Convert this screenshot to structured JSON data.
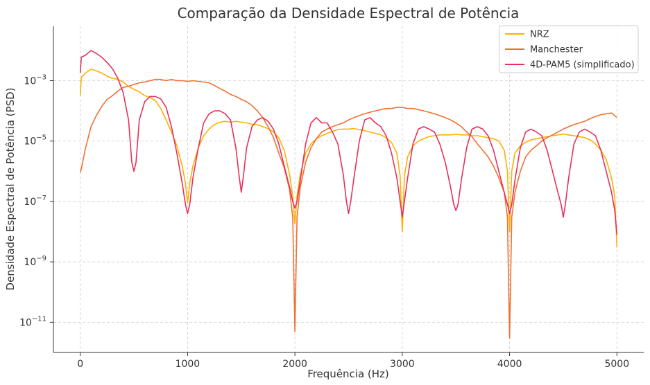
{
  "chart_data": {
    "type": "line",
    "title": "Comparação da Densidade Espectral de Potência",
    "xlabel": "Frequência (Hz)",
    "ylabel": "Densidade Espectral de Potência (PSD)",
    "xlim": [
      -250,
      5250
    ],
    "ylim_log10": [
      -12,
      -1.2
    ],
    "y_scale": "log",
    "grid": true,
    "legend_position": "top-right",
    "x_ticks": [
      {
        "value": 0,
        "label": "0"
      },
      {
        "value": 1000,
        "label": "1000"
      },
      {
        "value": 2000,
        "label": "2000"
      },
      {
        "value": 3000,
        "label": "3000"
      },
      {
        "value": 4000,
        "label": "4000"
      },
      {
        "value": 5000,
        "label": "5000"
      }
    ],
    "y_ticks": [
      {
        "exp": -3,
        "base": "10",
        "sup": "−3"
      },
      {
        "exp": -5,
        "base": "10",
        "sup": "−5"
      },
      {
        "exp": -7,
        "base": "10",
        "sup": "−7"
      },
      {
        "exp": -9,
        "base": "10",
        "sup": "−9"
      },
      {
        "exp": -11,
        "base": "10",
        "sup": "−11"
      }
    ],
    "series": [
      {
        "name": "NRZ",
        "color": "#FFB000",
        "x": [
          0,
          10,
          50,
          100,
          150,
          200,
          250,
          300,
          350,
          400,
          450,
          500,
          550,
          600,
          650,
          700,
          750,
          800,
          850,
          900,
          950,
          980,
          1000,
          1020,
          1050,
          1100,
          1150,
          1200,
          1250,
          1300,
          1350,
          1400,
          1450,
          1500,
          1550,
          1600,
          1650,
          1700,
          1750,
          1800,
          1850,
          1900,
          1950,
          1980,
          2000,
          2020,
          2050,
          2100,
          2150,
          2200,
          2250,
          2300,
          2350,
          2400,
          2450,
          2500,
          2550,
          2600,
          2650,
          2700,
          2750,
          2800,
          2850,
          2900,
          2950,
          2980,
          3000,
          3020,
          3050,
          3100,
          3150,
          3200,
          3250,
          3300,
          3350,
          3400,
          3450,
          3500,
          3550,
          3600,
          3650,
          3700,
          3750,
          3800,
          3850,
          3900,
          3950,
          3980,
          4000,
          4020,
          4050,
          4100,
          4150,
          4200,
          4250,
          4300,
          4350,
          4400,
          4450,
          4500,
          4550,
          4600,
          4650,
          4700,
          4750,
          4800,
          4850,
          4900,
          4950,
          4980,
          5000
        ],
        "y": [
          0.00032,
          0.0013,
          0.0018,
          0.0024,
          0.0021,
          0.0018,
          0.0014,
          0.0012,
          0.0011,
          0.0009,
          0.00065,
          0.00052,
          0.00043,
          0.00032,
          0.00028,
          0.00022,
          0.00012,
          5e-05,
          2e-05,
          7e-06,
          1.5e-06,
          4e-07,
          9e-08,
          4e-07,
          1.5e-06,
          6e-06,
          1.5e-05,
          2.5e-05,
          3.5e-05,
          4.2e-05,
          4.5e-05,
          4.2e-05,
          4.5e-05,
          4.2e-05,
          4e-05,
          3.6e-05,
          3.5e-05,
          3e-05,
          2.6e-05,
          2e-05,
          1.3e-05,
          5e-06,
          8e-07,
          1.5e-07,
          1.8e-08,
          1.5e-07,
          8e-07,
          4e-06,
          8e-06,
          1.2e-05,
          1.5e-05,
          1.8e-05,
          2.1e-05,
          2.4e-05,
          2.5e-05,
          2.5e-05,
          2.6e-05,
          2.4e-05,
          2.2e-05,
          2e-05,
          1.8e-05,
          1.6e-05,
          1.3e-05,
          9e-06,
          4e-06,
          7e-07,
          1e-08,
          7e-07,
          3e-06,
          7e-06,
          1e-05,
          1.2e-05,
          1.4e-05,
          1.5e-05,
          1.6e-05,
          1.6e-05,
          1.6e-05,
          1.7e-05,
          1.6e-05,
          1.6e-05,
          1.5e-05,
          1.5e-05,
          1.4e-05,
          1.3e-05,
          1.2e-05,
          1e-05,
          5e-06,
          1e-06,
          1e-08,
          1e-06,
          4e-06,
          7e-06,
          9e-06,
          1.1e-05,
          1.2e-05,
          1.3e-05,
          1.4e-05,
          1.5e-05,
          1.6e-05,
          1.7e-05,
          1.6e-05,
          1.5e-05,
          1.4e-05,
          1.3e-05,
          1.1e-05,
          8e-06,
          5e-06,
          2.5e-06,
          6e-07,
          1.5e-07,
          3e-09
        ]
      },
      {
        "name": "Manchester",
        "color": "#F07030",
        "x": [
          0,
          10,
          50,
          100,
          150,
          200,
          250,
          300,
          350,
          400,
          450,
          500,
          550,
          600,
          650,
          700,
          750,
          800,
          850,
          900,
          950,
          1000,
          1050,
          1100,
          1150,
          1200,
          1250,
          1300,
          1350,
          1400,
          1450,
          1500,
          1550,
          1600,
          1650,
          1700,
          1750,
          1800,
          1850,
          1900,
          1950,
          1980,
          2000,
          2020,
          2050,
          2100,
          2150,
          2200,
          2250,
          2300,
          2350,
          2400,
          2450,
          2500,
          2550,
          2600,
          2650,
          2700,
          2750,
          2800,
          2850,
          2900,
          2950,
          3000,
          3050,
          3100,
          3150,
          3200,
          3250,
          3300,
          3350,
          3400,
          3450,
          3500,
          3550,
          3600,
          3650,
          3700,
          3750,
          3800,
          3850,
          3900,
          3950,
          3980,
          4000,
          4020,
          4050,
          4100,
          4150,
          4200,
          4250,
          4300,
          4350,
          4400,
          4450,
          4500,
          4550,
          4600,
          4650,
          4700,
          4750,
          4800,
          4850,
          4900,
          4950,
          5000
        ],
        "y": [
          9e-07,
          1.2e-06,
          6e-06,
          3e-05,
          7e-05,
          0.00014,
          0.00024,
          0.00032,
          0.00045,
          0.0006,
          0.00065,
          0.00075,
          0.00085,
          0.0009,
          0.001,
          0.0011,
          0.0011,
          0.001,
          0.0011,
          0.001,
          0.001,
          0.00095,
          0.001,
          0.00095,
          0.0009,
          0.00085,
          0.0007,
          0.00055,
          0.00045,
          0.00035,
          0.0003,
          0.00024,
          0.0002,
          0.00015,
          0.0001,
          6e-05,
          3e-05,
          1.3e-05,
          4e-06,
          1.3e-06,
          2.5e-07,
          3e-08,
          5e-12,
          3e-08,
          3e-07,
          2e-06,
          6e-06,
          1.2e-05,
          2e-05,
          2.5e-05,
          3e-05,
          3.5e-05,
          4e-05,
          5e-05,
          6e-05,
          7e-05,
          8e-05,
          9e-05,
          0.0001,
          0.00011,
          0.00012,
          0.00012,
          0.00013,
          0.00013,
          0.00012,
          0.00012,
          0.00011,
          0.0001,
          9e-05,
          8e-05,
          7e-05,
          6e-05,
          5e-05,
          4e-05,
          3e-05,
          2e-05,
          1.4e-05,
          8e-06,
          5e-06,
          3e-06,
          1.5e-06,
          6e-07,
          2e-07,
          3e-08,
          3e-12,
          3e-08,
          2e-07,
          1e-06,
          3e-06,
          5e-06,
          7e-06,
          1e-05,
          1.3e-05,
          1.6e-05,
          2e-05,
          2.5e-05,
          3e-05,
          3.5e-05,
          4e-05,
          4.5e-05,
          5.5e-05,
          6.5e-05,
          7.5e-05,
          8e-05,
          8.5e-05,
          6e-05
        ]
      },
      {
        "name": "4D-PAM5 (simplificado)",
        "color": "#E8305A",
        "x": [
          0,
          10,
          50,
          100,
          150,
          200,
          250,
          300,
          350,
          400,
          450,
          480,
          500,
          520,
          550,
          600,
          650,
          700,
          750,
          800,
          850,
          900,
          950,
          980,
          1000,
          1020,
          1050,
          1100,
          1150,
          1200,
          1250,
          1300,
          1350,
          1400,
          1450,
          1480,
          1500,
          1520,
          1550,
          1600,
          1650,
          1700,
          1750,
          1800,
          1850,
          1900,
          1950,
          1980,
          2000,
          2020,
          2050,
          2100,
          2150,
          2200,
          2250,
          2300,
          2350,
          2400,
          2450,
          2480,
          2500,
          2520,
          2550,
          2600,
          2650,
          2700,
          2750,
          2800,
          2850,
          2900,
          2950,
          2980,
          3000,
          3020,
          3050,
          3100,
          3150,
          3200,
          3250,
          3300,
          3350,
          3400,
          3450,
          3480,
          3500,
          3520,
          3550,
          3600,
          3650,
          3700,
          3750,
          3800,
          3850,
          3900,
          3950,
          3980,
          4000,
          4020,
          4050,
          4100,
          4150,
          4200,
          4250,
          4300,
          4350,
          4400,
          4450,
          4480,
          4500,
          4520,
          4550,
          4600,
          4650,
          4700,
          4750,
          4800,
          4850,
          4900,
          4950,
          4980,
          5000
        ],
        "y": [
          0.0018,
          0.006,
          0.007,
          0.01,
          0.008,
          0.006,
          0.004,
          0.0025,
          0.0012,
          0.0004,
          5e-05,
          2e-06,
          1e-06,
          2e-06,
          5e-05,
          0.0002,
          0.0003,
          0.0003,
          0.00025,
          0.00013,
          3e-05,
          4e-06,
          4e-07,
          8e-08,
          4e-08,
          8e-08,
          6e-07,
          6e-06,
          4e-05,
          8e-05,
          0.0001,
          0.0001,
          8e-05,
          5e-05,
          6e-06,
          7e-07,
          2e-07,
          7e-07,
          6e-06,
          3e-05,
          5e-05,
          6e-05,
          4.5e-05,
          2.5e-05,
          8e-06,
          1.5e-06,
          3e-07,
          1e-07,
          6e-08,
          1e-07,
          5e-07,
          8e-06,
          4e-05,
          6e-05,
          4e-05,
          4e-05,
          2e-05,
          8e-06,
          8e-07,
          1e-07,
          4e-08,
          1e-07,
          6e-07,
          1e-05,
          5e-05,
          6e-05,
          4e-05,
          3e-05,
          1.5e-05,
          4e-06,
          6e-07,
          1e-07,
          3e-08,
          1e-07,
          6e-07,
          8e-06,
          2.5e-05,
          3e-05,
          2.5e-05,
          2e-05,
          8e-06,
          2e-06,
          3e-07,
          8e-08,
          5e-08,
          8e-08,
          5e-07,
          6e-06,
          2.5e-05,
          3e-05,
          2.5e-05,
          1.5e-05,
          5e-06,
          1e-06,
          2e-07,
          8e-08,
          4e-08,
          8e-08,
          5e-07,
          6e-06,
          2e-05,
          2.5e-05,
          2e-05,
          1.5e-05,
          5e-06,
          1e-06,
          2e-07,
          8e-08,
          3e-08,
          8e-08,
          6e-07,
          8e-06,
          2e-05,
          2.5e-05,
          2e-05,
          1.5e-05,
          5e-06,
          1e-06,
          2e-07,
          5e-08,
          8e-09
        ]
      }
    ]
  }
}
